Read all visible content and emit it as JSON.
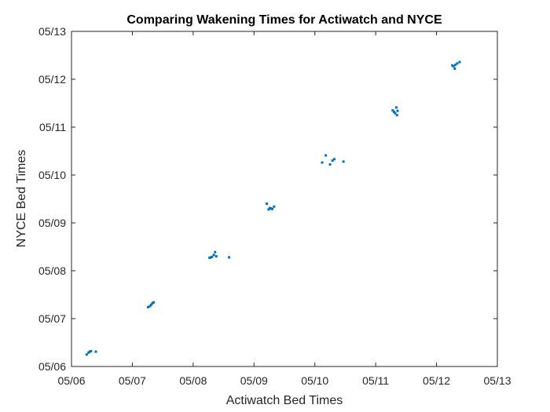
{
  "chart_data": {
    "type": "scatter",
    "title": "Comparing Wakening Times for Actiwatch and NYCE",
    "xlabel": "Actiwatch Bed Times",
    "ylabel": "NYCE Bed Times",
    "xlim": [
      6,
      13
    ],
    "ylim": [
      6,
      13
    ],
    "x_ticks": [
      6,
      7,
      8,
      9,
      10,
      11,
      12,
      13
    ],
    "y_ticks": [
      6,
      7,
      8,
      9,
      10,
      11,
      12,
      13
    ],
    "x_tick_labels": [
      "05/06",
      "05/07",
      "05/08",
      "05/09",
      "05/10",
      "05/11",
      "05/12",
      "05/13"
    ],
    "y_tick_labels": [
      "05/06",
      "05/07",
      "05/08",
      "05/09",
      "05/10",
      "05/11",
      "05/12",
      "05/13"
    ],
    "grid": false,
    "marker_color": "#0072BD",
    "series": [
      {
        "points": [
          {
            "x": 6.25,
            "y": 6.25
          },
          {
            "x": 6.28,
            "y": 6.29
          },
          {
            "x": 6.3,
            "y": 6.31
          },
          {
            "x": 6.32,
            "y": 6.32
          },
          {
            "x": 6.4,
            "y": 6.31
          },
          {
            "x": 7.26,
            "y": 7.24
          },
          {
            "x": 7.29,
            "y": 7.26
          },
          {
            "x": 7.31,
            "y": 7.29
          },
          {
            "x": 7.33,
            "y": 7.32
          },
          {
            "x": 7.35,
            "y": 7.34
          },
          {
            "x": 8.27,
            "y": 8.27
          },
          {
            "x": 8.29,
            "y": 8.28
          },
          {
            "x": 8.31,
            "y": 8.29
          },
          {
            "x": 8.34,
            "y": 8.33
          },
          {
            "x": 8.36,
            "y": 8.39
          },
          {
            "x": 8.38,
            "y": 8.3
          },
          {
            "x": 8.59,
            "y": 8.28
          },
          {
            "x": 9.21,
            "y": 9.4
          },
          {
            "x": 9.24,
            "y": 9.28
          },
          {
            "x": 9.26,
            "y": 9.31
          },
          {
            "x": 9.28,
            "y": 9.3
          },
          {
            "x": 9.3,
            "y": 9.29
          },
          {
            "x": 9.33,
            "y": 9.34
          },
          {
            "x": 10.12,
            "y": 10.26
          },
          {
            "x": 10.18,
            "y": 10.41
          },
          {
            "x": 10.25,
            "y": 10.22
          },
          {
            "x": 10.29,
            "y": 10.3
          },
          {
            "x": 10.32,
            "y": 10.33
          },
          {
            "x": 10.47,
            "y": 10.28
          },
          {
            "x": 11.28,
            "y": 11.35
          },
          {
            "x": 11.3,
            "y": 11.32
          },
          {
            "x": 11.32,
            "y": 11.29
          },
          {
            "x": 11.34,
            "y": 11.41
          },
          {
            "x": 11.35,
            "y": 11.25
          },
          {
            "x": 11.36,
            "y": 11.34
          },
          {
            "x": 12.26,
            "y": 12.29
          },
          {
            "x": 12.28,
            "y": 12.27
          },
          {
            "x": 12.3,
            "y": 12.22
          },
          {
            "x": 12.31,
            "y": 12.3
          },
          {
            "x": 12.34,
            "y": 12.33
          },
          {
            "x": 12.38,
            "y": 12.36
          }
        ]
      }
    ]
  }
}
